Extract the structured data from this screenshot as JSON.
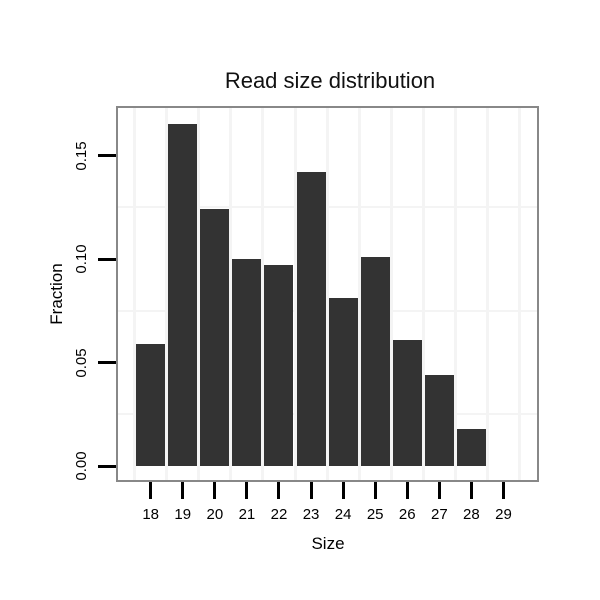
{
  "chart_data": {
    "type": "bar",
    "title": "Read size distribution",
    "xlabel": "Size",
    "ylabel": "Fraction",
    "categories": [
      18,
      19,
      20,
      21,
      22,
      23,
      24,
      25,
      26,
      27,
      28
    ],
    "values": [
      0.059,
      0.165,
      0.124,
      0.1,
      0.097,
      0.142,
      0.081,
      0.101,
      0.061,
      0.044,
      0.018
    ],
    "x_ticks": [
      {
        "value": 18,
        "label": "18"
      },
      {
        "value": 19,
        "label": "19"
      },
      {
        "value": 20,
        "label": "20"
      },
      {
        "value": 21,
        "label": "21"
      },
      {
        "value": 22,
        "label": "22"
      },
      {
        "value": 23,
        "label": "23"
      },
      {
        "value": 24,
        "label": "24"
      },
      {
        "value": 25,
        "label": "25"
      },
      {
        "value": 26,
        "label": "26"
      },
      {
        "value": 27,
        "label": "27"
      },
      {
        "value": 28,
        "label": "28"
      },
      {
        "value": 29,
        "label": "29"
      }
    ],
    "y_ticks": [
      {
        "value": 0.0,
        "label": "0.00"
      },
      {
        "value": 0.05,
        "label": "0.05"
      },
      {
        "value": 0.1,
        "label": "0.10"
      },
      {
        "value": 0.15,
        "label": "0.15"
      }
    ],
    "ylim": [
      0,
      0.1735
    ],
    "xlim": [
      16.95,
      30.05
    ],
    "grid": {
      "on": true,
      "h_lines": [
        0.025,
        0.075,
        0.125
      ],
      "v_lines": [
        17.5,
        18.5,
        19.5,
        20.5,
        21.5,
        22.5,
        23.5,
        24.5,
        25.5,
        26.5,
        27.5,
        28.5,
        29.5
      ],
      "color": "#f4f4f4"
    },
    "legend_position": "none",
    "colors": {
      "bar": "#333333",
      "panel_border": "#888888",
      "tick": "#000000",
      "text": "#000000",
      "background": "#ffffff"
    }
  }
}
